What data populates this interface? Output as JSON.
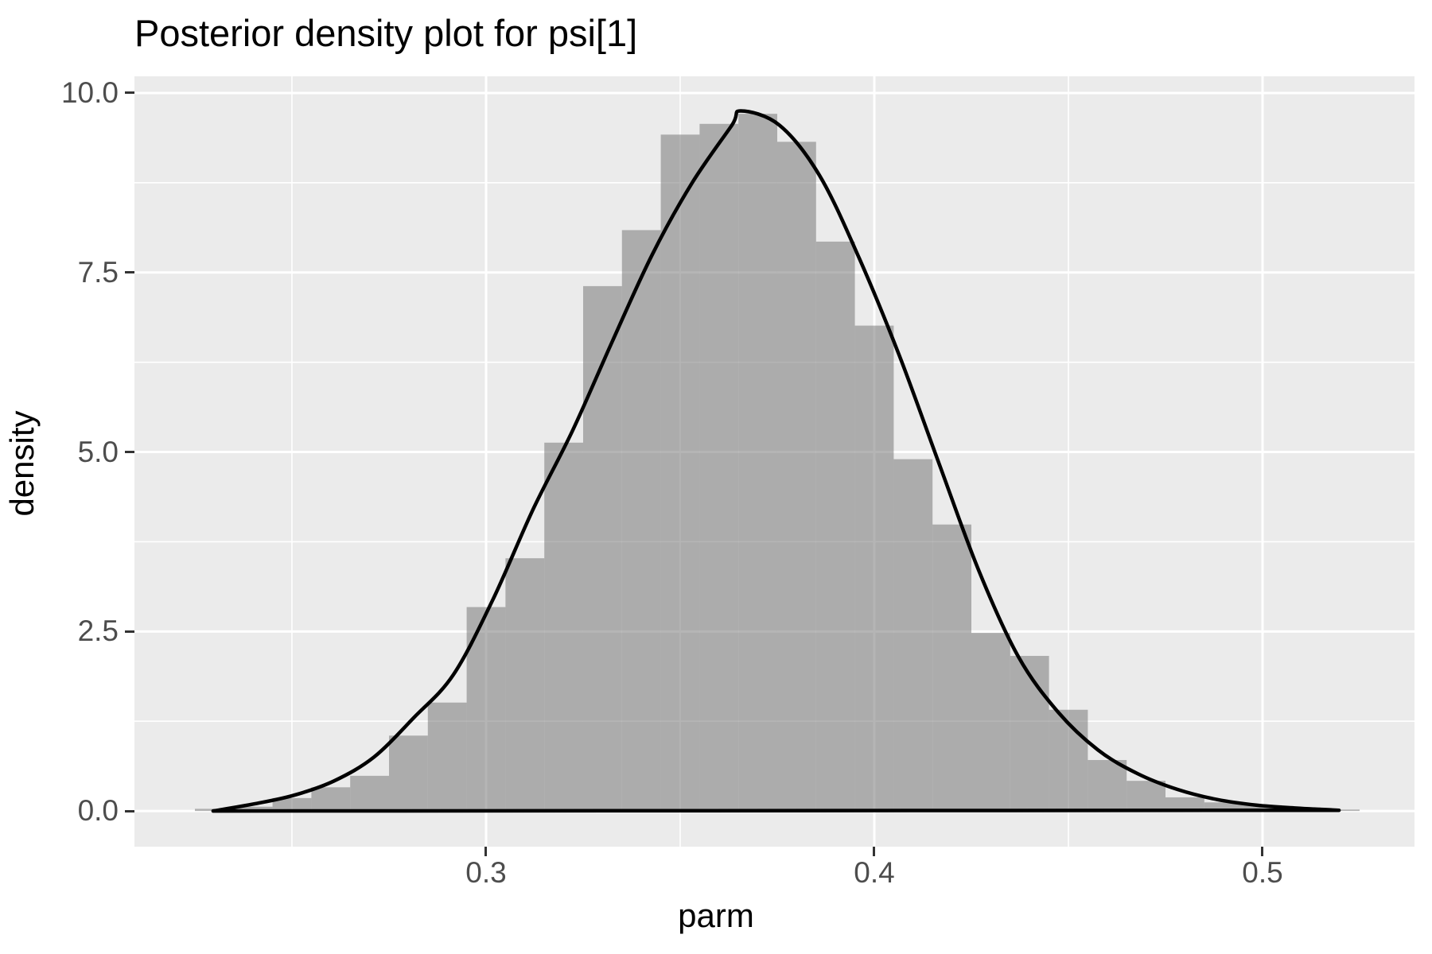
{
  "title": "Posterior density plot for psi[1]",
  "x_axis": {
    "label": "parm",
    "ticks": [
      {
        "value": 0.3,
        "label": "0.3"
      },
      {
        "value": 0.4,
        "label": "0.4"
      },
      {
        "value": 0.5,
        "label": "0.5"
      }
    ],
    "minor_gridlines": [
      0.25,
      0.35,
      0.45
    ]
  },
  "y_axis": {
    "label": "density",
    "ticks": [
      {
        "value": 0.0,
        "label": "0.0"
      },
      {
        "value": 2.5,
        "label": "2.5"
      },
      {
        "value": 5.0,
        "label": "5.0"
      },
      {
        "value": 7.5,
        "label": "7.5"
      },
      {
        "value": 10.0,
        "label": "10.0"
      }
    ],
    "minor_gridlines": [
      1.25,
      3.75,
      6.25,
      8.75
    ]
  },
  "chart_data": {
    "type": "area",
    "title": "Posterior density plot for psi[1]",
    "xlabel": "parm",
    "ylabel": "density",
    "xlim": [
      0.20943,
      0.53914
    ],
    "ylim": [
      -0.497,
      10.232
    ],
    "grid": "on",
    "legend": "none",
    "histogram": {
      "bin_width": 0.01,
      "centers": [
        0.23,
        0.24,
        0.25,
        0.26,
        0.27,
        0.28,
        0.29,
        0.3,
        0.31,
        0.32,
        0.33,
        0.34,
        0.35,
        0.36,
        0.37,
        0.38,
        0.39,
        0.4,
        0.41,
        0.42,
        0.43,
        0.44,
        0.45,
        0.46,
        0.47,
        0.48,
        0.49,
        0.5,
        0.51,
        0.52
      ],
      "densities": [
        0.03,
        0.06,
        0.18,
        0.33,
        0.49,
        1.05,
        1.51,
        2.84,
        3.52,
        5.13,
        7.31,
        8.09,
        9.42,
        9.57,
        9.71,
        9.32,
        7.93,
        6.76,
        4.9,
        3.99,
        2.48,
        2.16,
        1.41,
        0.71,
        0.42,
        0.19,
        0.12,
        0.08,
        0.05,
        0.02
      ]
    },
    "density_curve": {
      "peak": {
        "x": 0.3656,
        "y": 9.75
      },
      "x": [
        0.2297,
        0.2404,
        0.2506,
        0.2609,
        0.2711,
        0.2814,
        0.2916,
        0.3018,
        0.3121,
        0.3223,
        0.3326,
        0.3428,
        0.3531,
        0.3633,
        0.3656,
        0.3756,
        0.3859,
        0.3961,
        0.4064,
        0.4166,
        0.4269,
        0.4371,
        0.4473,
        0.4576,
        0.4678,
        0.4781,
        0.4883,
        0.4986,
        0.5088,
        0.5197
      ],
      "y": [
        0.0,
        0.1,
        0.22,
        0.42,
        0.75,
        1.3,
        1.9,
        2.95,
        4.2,
        5.3,
        6.55,
        7.75,
        8.75,
        9.55,
        9.75,
        9.55,
        8.85,
        7.7,
        6.35,
        4.85,
        3.35,
        2.15,
        1.38,
        0.85,
        0.52,
        0.3,
        0.16,
        0.08,
        0.04,
        0.01
      ]
    },
    "colors": {
      "panel_background": "#EBEBEB",
      "gridline": "#FFFFFF",
      "bar_fill": "#787878",
      "bar_opacity": 0.55,
      "curve_stroke": "#000000",
      "axis_text": "#4D4D4D",
      "tick_mark": "#333333",
      "title_text": "#000000"
    }
  }
}
